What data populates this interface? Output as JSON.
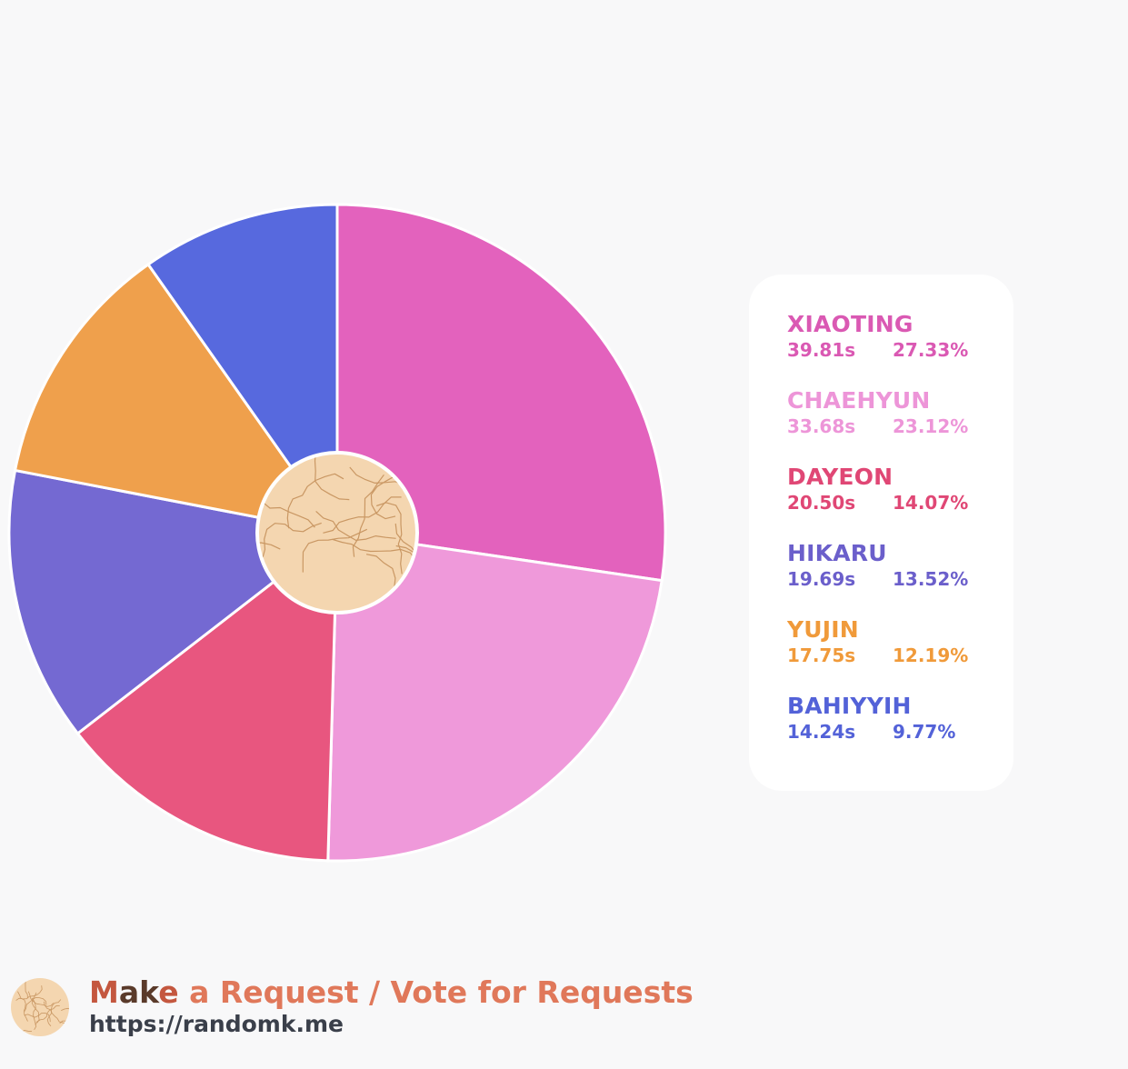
{
  "chart_data": {
    "type": "pie",
    "center_hole": true,
    "legend_position": "right",
    "slices": [
      {
        "name": "XIAOTING",
        "time": "39.81s",
        "percent_label": "27.33%",
        "value": 27.33,
        "color": "#e362bd",
        "legend_color": "#da59b3"
      },
      {
        "name": "CHAEHYUN",
        "time": "33.68s",
        "percent_label": "23.12%",
        "value": 23.12,
        "color": "#ef99da",
        "legend_color": "#ed95d8"
      },
      {
        "name": "DAYEON",
        "time": "20.50s",
        "percent_label": "14.07%",
        "value": 14.07,
        "color": "#e8567f",
        "legend_color": "#e04775"
      },
      {
        "name": "HIKARU",
        "time": "19.69s",
        "percent_label": "13.52%",
        "value": 13.52,
        "color": "#7469d2",
        "legend_color": "#6b5fcb"
      },
      {
        "name": "YUJIN",
        "time": "17.75s",
        "percent_label": "12.19%",
        "value": 12.19,
        "color": "#efa04c",
        "legend_color": "#f09a3a"
      },
      {
        "name": "BAHIYYIH",
        "time": "14.24s",
        "percent_label": "9.77%",
        "value": 9.77,
        "color": "#5769de",
        "legend_color": "#5362d8"
      }
    ]
  },
  "footer": {
    "request_M": "M",
    "request_ak": "ak",
    "request_e": "e",
    "request_rest": " a Request / Vote for Requests",
    "url": "https://randomk.me",
    "colors": {
      "M": "#c4573f",
      "ak": "#5a3a2a",
      "e": "#c4573f",
      "rest": "#e0785a",
      "url": "#3a3f4a"
    }
  },
  "logo": {
    "icon": "cracked-cookie-logo",
    "fill": "#f4d6b0",
    "line": "#c99763"
  }
}
